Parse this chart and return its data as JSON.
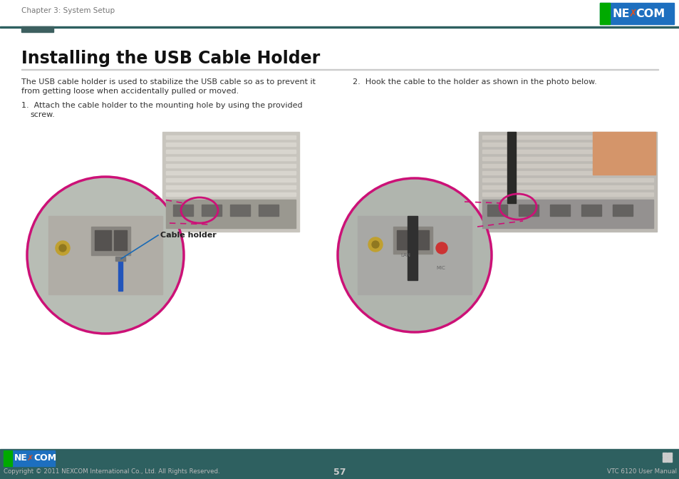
{
  "bg_color": "#ffffff",
  "chapter_text": "Chapter 3: System Setup",
  "title": "Installing the USB Cable Holder",
  "para1_line1": "The USB cable holder is used to stabilize the USB cable so as to prevent it",
  "para1_line2": "from getting loose when accidentally pulled or moved.",
  "step1_line1": "1.  Attach the cable holder to the mounting hole by using the provided",
  "step1_line2": "    screw.",
  "step2": "2.  Hook the cable to the holder as shown in the photo below.",
  "cable_holder_label": "Cable holder",
  "footer_bg": "#2e6060",
  "footer_copyright": "Copyright © 2011 NEXCOM International Co., Ltd. All Rights Reserved.",
  "footer_page": "57",
  "footer_right": "VTC 6120 User Manual",
  "nexcom_logo_bg": "#1d6fbf",
  "nexcom_green": "#00aa00",
  "nexcom_red": "#cc0000",
  "header_bar_color": "#2e6060",
  "header_accent_color": "#3d6060",
  "dashed_color": "#cc1177",
  "circle_color": "#cc1177",
  "annot_line_color": "#1a6ab5",
  "photo_bg1": "#c8c5be",
  "photo_bg2": "#bdbab4",
  "big_circle_fill": "#b8bdb5",
  "big_circle2_fill": "#b0b5ae"
}
